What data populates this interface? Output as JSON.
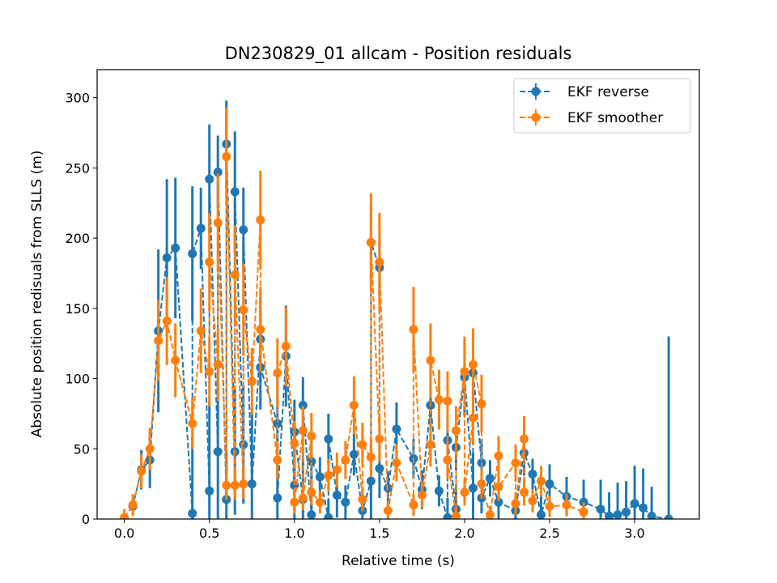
{
  "chart_data": {
    "type": "scatter",
    "title": "DN230829_01 allcam - Position residuals",
    "xlabel": "Relative time (s)",
    "ylabel": "Absolute position redisuals from SLLS (m)",
    "xlim": [
      -0.16,
      3.38
    ],
    "ylim": [
      0,
      320
    ],
    "xticks": [
      "0.0",
      "0.5",
      "1.0",
      "1.5",
      "2.0",
      "2.5",
      "3.0"
    ],
    "xtick_values": [
      0.0,
      0.5,
      1.0,
      1.5,
      2.0,
      2.5,
      3.0
    ],
    "yticks": [
      "0",
      "50",
      "100",
      "150",
      "200",
      "250",
      "300"
    ],
    "ytick_values": [
      0,
      50,
      100,
      150,
      200,
      250,
      300
    ],
    "grid": false,
    "legend_position": "top-right",
    "series": [
      {
        "name": "EKF reverse",
        "color": "#1f77b4",
        "style": "dashed line with circle markers and error bars",
        "x": [
          0.05,
          0.1,
          0.15,
          0.2,
          0.25,
          0.3,
          0.4,
          0.4,
          0.45,
          0.5,
          0.5,
          0.55,
          0.55,
          0.6,
          0.6,
          0.65,
          0.65,
          0.7,
          0.7,
          0.75,
          0.8,
          0.8,
          0.9,
          0.9,
          0.95,
          1.0,
          1.0,
          1.05,
          1.05,
          1.1,
          1.1,
          1.15,
          1.2,
          1.2,
          1.25,
          1.3,
          1.35,
          1.4,
          1.45,
          1.45,
          1.5,
          1.5,
          1.55,
          1.6,
          1.7,
          1.75,
          1.8,
          1.85,
          1.9,
          1.9,
          1.95,
          1.95,
          2.0,
          2.05,
          2.05,
          2.1,
          2.1,
          2.15,
          2.2,
          2.3,
          2.35,
          2.4,
          2.45,
          2.5,
          2.6,
          2.7,
          2.8,
          2.85,
          2.9,
          2.95,
          3.0,
          3.05,
          3.1,
          3.2
        ],
        "y": [
          9,
          35,
          42,
          134,
          186,
          193,
          4,
          189,
          207,
          20,
          242,
          48,
          247,
          14,
          267,
          48,
          233,
          53,
          206,
          25,
          128,
          108,
          68,
          15,
          116,
          24,
          62,
          14,
          81,
          3,
          41,
          30,
          1,
          57,
          17,
          12,
          46,
          6,
          27,
          197,
          179,
          36,
          22,
          64,
          43,
          21,
          81,
          20,
          1,
          56,
          7,
          51,
          101,
          22,
          104,
          40,
          15,
          29,
          12,
          6,
          47,
          32,
          3,
          25,
          16,
          12,
          7,
          2,
          3,
          5,
          11,
          8,
          2,
          0
        ],
        "yerr": [
          3,
          14,
          20,
          58,
          56,
          50,
          54,
          48,
          29,
          64,
          39,
          64,
          26,
          35,
          31,
          45,
          43,
          42,
          30,
          54,
          30,
          30,
          38,
          29,
          36,
          35,
          23,
          29,
          20,
          29,
          18,
          14,
          13,
          18,
          16,
          12,
          15,
          11,
          27,
          27,
          20,
          21,
          12,
          19,
          14,
          14,
          14,
          11,
          14,
          17,
          16,
          16,
          28,
          25,
          25,
          17,
          11,
          13,
          16,
          12,
          16,
          11,
          13,
          14,
          14,
          16,
          21,
          17,
          23,
          22,
          27,
          28,
          21,
          130
        ]
      },
      {
        "name": "EKF smoother",
        "color": "#ff7f0e",
        "style": "dashed line with circle markers and error bars",
        "x": [
          0.0,
          0.05,
          0.1,
          0.15,
          0.2,
          0.25,
          0.3,
          0.4,
          0.45,
          0.5,
          0.5,
          0.55,
          0.55,
          0.6,
          0.6,
          0.65,
          0.65,
          0.7,
          0.7,
          0.75,
          0.8,
          0.8,
          0.9,
          0.9,
          0.95,
          1.0,
          1.0,
          1.05,
          1.05,
          1.1,
          1.1,
          1.15,
          1.2,
          1.25,
          1.3,
          1.35,
          1.4,
          1.4,
          1.45,
          1.45,
          1.5,
          1.5,
          1.55,
          1.6,
          1.7,
          1.7,
          1.75,
          1.8,
          1.8,
          1.85,
          1.9,
          1.9,
          1.95,
          1.95,
          2.0,
          2.0,
          2.05,
          2.05,
          2.1,
          2.1,
          2.15,
          2.2,
          2.2,
          2.3,
          2.3,
          2.35,
          2.35,
          2.4,
          2.45,
          2.5,
          2.6,
          2.7
        ],
        "y": [
          1,
          10,
          34,
          50,
          127,
          141,
          113,
          68,
          134,
          105,
          183,
          110,
          211,
          24,
          258,
          24,
          174,
          25,
          149,
          98,
          213,
          135,
          42,
          104,
          123,
          54,
          12,
          63,
          15,
          59,
          19,
          12,
          31,
          35,
          42,
          81,
          14,
          53,
          44,
          197,
          57,
          183,
          6,
          40,
          10,
          135,
          17,
          53,
          113,
          85,
          84,
          42,
          2,
          63,
          105,
          19,
          72,
          110,
          82,
          25,
          3,
          45,
          23,
          40,
          11,
          57,
          19,
          13,
          27,
          9,
          10,
          5
        ]
      }
    ]
  },
  "legend": {
    "entries": [
      "EKF reverse",
      "EKF smoother"
    ]
  }
}
